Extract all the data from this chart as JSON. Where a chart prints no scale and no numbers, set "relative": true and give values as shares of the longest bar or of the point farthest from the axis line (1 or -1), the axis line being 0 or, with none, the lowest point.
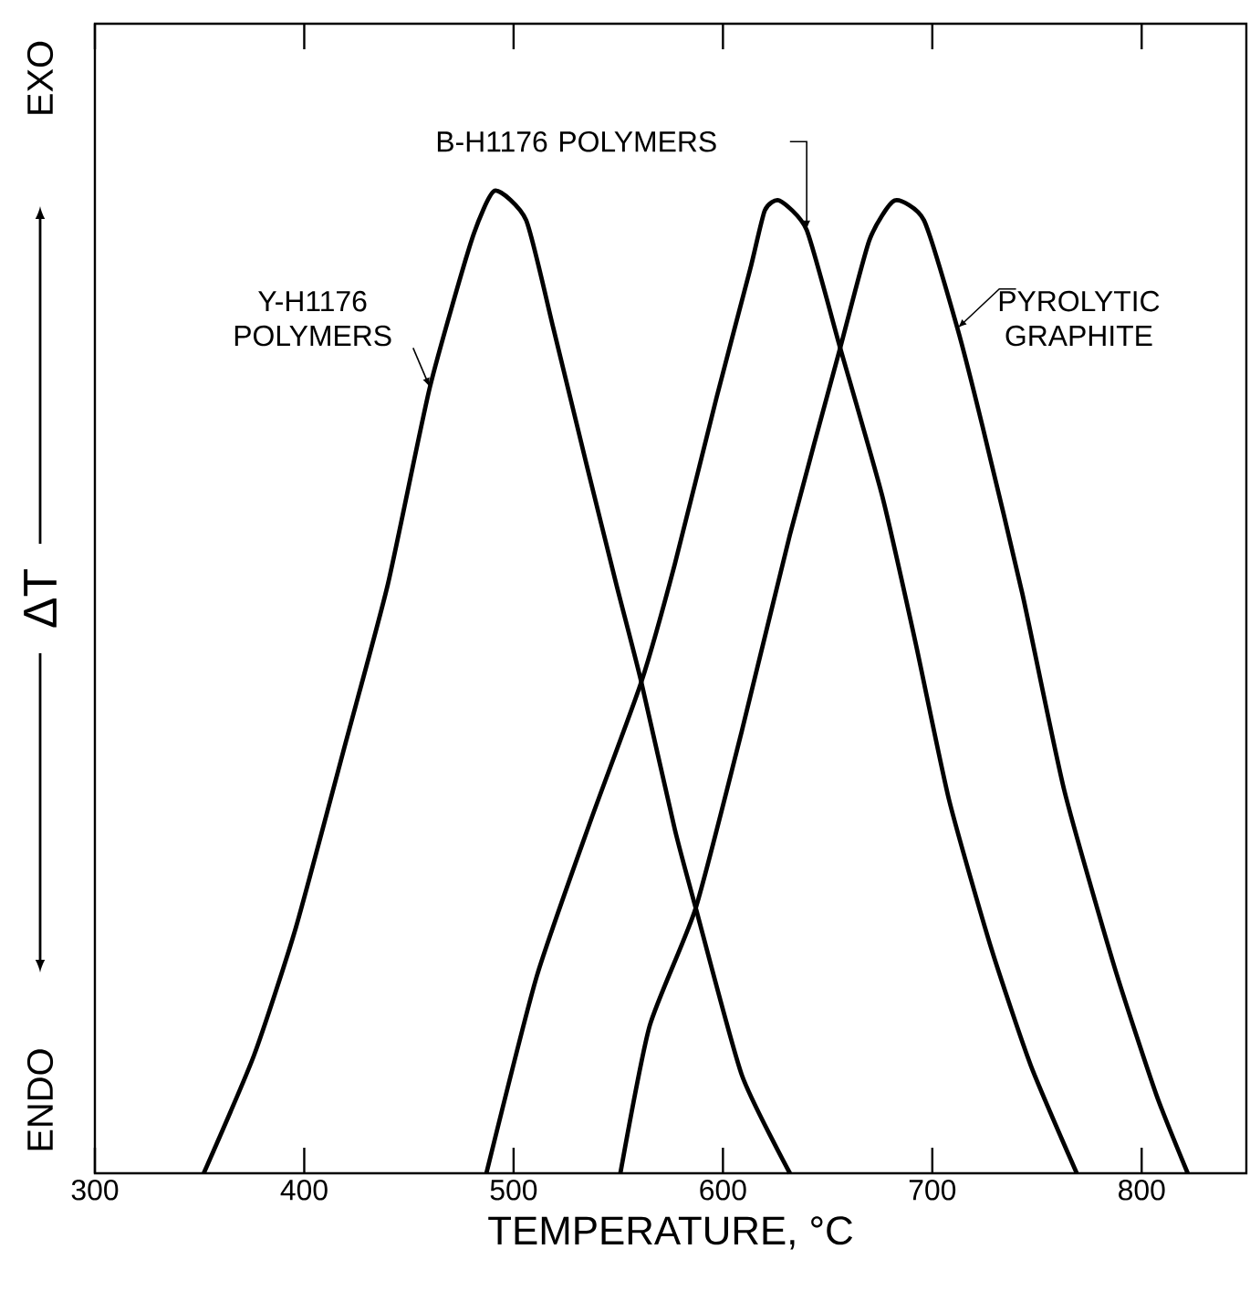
{
  "chart_data": {
    "type": "line",
    "relative": true,
    "xlabel": "TEMPERATURE, °C",
    "ylabel": "ΔT",
    "annotations": [
      "EXO",
      "ENDO"
    ],
    "xlim": [
      300,
      850
    ],
    "xticks": [
      300,
      400,
      500,
      600,
      700,
      800
    ],
    "grid": false,
    "marker": "none",
    "line_style": "solid",
    "series": [
      {
        "name": "Y-H1176 POLYMERS",
        "color": "#000000",
        "x": [
          352,
          376,
          396,
          420,
          440,
          460,
          480,
          491,
          506,
          519,
          535,
          549,
          561,
          577,
          587,
          609,
          632
        ],
        "values": [
          0,
          0.12,
          0.25,
          0.44,
          0.6,
          0.8,
          0.95,
          1,
          0.97,
          0.86,
          0.72,
          0.6,
          0.5,
          0.35,
          0.27,
          0.1,
          0
        ]
      },
      {
        "name": "B-H1176 POLYMERS",
        "color": "#000000",
        "x": [
          487,
          511,
          537,
          561,
          577,
          597,
          613,
          620,
          627,
          640,
          656,
          676,
          692,
          708,
          728,
          747,
          769
        ],
        "values": [
          0,
          0.2,
          0.36,
          0.5,
          0.62,
          0.79,
          0.92,
          0.98,
          0.99,
          0.96,
          0.84,
          0.69,
          0.54,
          0.38,
          0.23,
          0.11,
          0
        ]
      },
      {
        "name": "PYROLYTIC GRAPHITE",
        "color": "#000000",
        "x": [
          551,
          565,
          587,
          609,
          632,
          656,
          670,
          682,
          696,
          712,
          724,
          743,
          763,
          787,
          807,
          822
        ],
        "values": [
          0,
          0.15,
          0.27,
          0.45,
          0.65,
          0.84,
          0.95,
          0.99,
          0.97,
          0.86,
          0.76,
          0.59,
          0.39,
          0.21,
          0.08,
          0
        ]
      }
    ]
  }
}
